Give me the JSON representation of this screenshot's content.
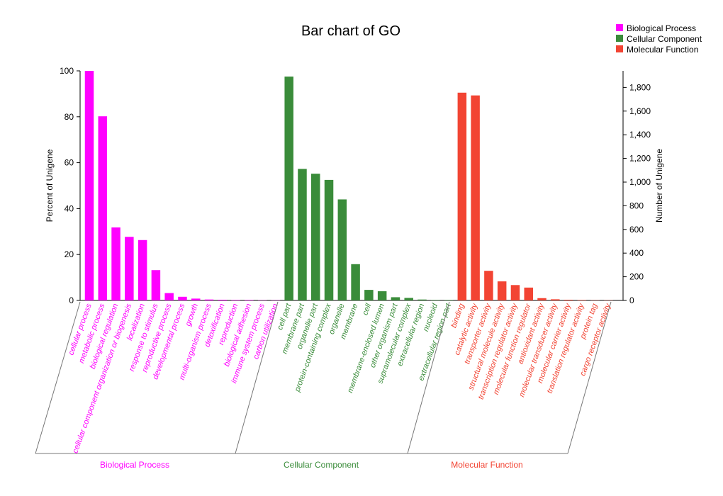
{
  "chart_data": {
    "type": "bar",
    "title": "Bar chart of GO",
    "ylabel_left": "Percent of Unigene",
    "ylabel_right": "Number of Unigene",
    "ylim_left": [
      0,
      100
    ],
    "ylim_right": [
      0,
      1940
    ],
    "left_ticks": [
      "0",
      "20",
      "40",
      "60",
      "80",
      "100"
    ],
    "right_ticks": [
      "0",
      "200",
      "400",
      "600",
      "800",
      "1,000",
      "1,200",
      "1,400",
      "1,600",
      "1,800"
    ],
    "grid": false,
    "legend_position": "top-right",
    "groups": [
      {
        "name": "Biological Process",
        "color": "#ff00ff",
        "categories": [
          "cellular process",
          "metabolic process",
          "biological regulation",
          "cellular component organization or biogenesis",
          "localization",
          "response to stimulus",
          "reproductive process",
          "developmental process",
          "growth",
          "multi-organism process",
          "detoxification",
          "reproduction",
          "biological adhesion",
          "immune system process",
          "carbon utilization"
        ],
        "values": [
          100,
          80.2,
          31.8,
          27.7,
          26.3,
          13.2,
          3.2,
          1.6,
          0.8,
          0.4,
          0.3,
          0.2,
          0.2,
          0.1,
          0.1
        ]
      },
      {
        "name": "Cellular Component",
        "color": "#3a8c3a",
        "categories": [
          "cell part",
          "membrane part",
          "organelle part",
          "protein-containing complex",
          "organelle",
          "membrane",
          "cell",
          "membrane-enclosed lumen",
          "other organism part",
          "supramolecular complex",
          "extracellular region",
          "nucleoid",
          "extracellular region part"
        ],
        "values": [
          97.5,
          57.3,
          55.2,
          52.5,
          44.0,
          15.8,
          4.6,
          4.0,
          1.4,
          1.1,
          0.4,
          0.2,
          0.2
        ]
      },
      {
        "name": "Molecular Function",
        "color": "#f24433",
        "categories": [
          "binding",
          "catalytic activity",
          "transporter activity",
          "structural molecule activity",
          "transcription regulator activity",
          "molecular function regulator",
          "antioxidant activity",
          "molecular transducer activity",
          "molecular carrier activity",
          "translation regulator activity",
          "protein tag",
          "cargo receptor activity"
        ],
        "values": [
          90.5,
          89.3,
          12.9,
          8.3,
          6.7,
          5.6,
          1.0,
          0.5,
          0.3,
          0.2,
          0.1,
          0.1
        ]
      }
    ]
  }
}
